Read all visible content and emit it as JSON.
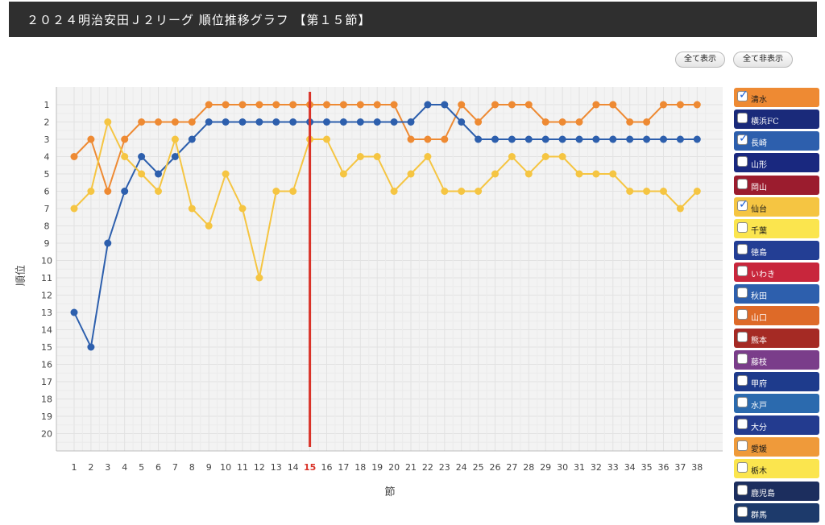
{
  "header": {
    "title": "２０２４明治安田Ｊ２リーグ 順位推移グラフ 【第１５節】"
  },
  "buttons": {
    "show_all": "全て表示",
    "hide_all": "全て非表示"
  },
  "legend": [
    {
      "name": "清水",
      "checked": true,
      "bg": "#ee8a33",
      "text": "#1a1a1a"
    },
    {
      "name": "横浜FC",
      "checked": false,
      "bg": "#1a2a7a",
      "text": "#ffffff"
    },
    {
      "name": "長崎",
      "checked": true,
      "bg": "#2d5fad",
      "text": "#ffffff"
    },
    {
      "name": "山形",
      "checked": false,
      "bg": "#19287f",
      "text": "#ffffff"
    },
    {
      "name": "岡山",
      "checked": false,
      "bg": "#9b1c2e",
      "text": "#ffffff"
    },
    {
      "name": "仙台",
      "checked": true,
      "bg": "#f5c542",
      "text": "#1a1a1a"
    },
    {
      "name": "千葉",
      "checked": false,
      "bg": "#fbe54e",
      "text": "#1a1a1a"
    },
    {
      "name": "徳島",
      "checked": false,
      "bg": "#233e94",
      "text": "#ffffff"
    },
    {
      "name": "いわき",
      "checked": false,
      "bg": "#c8263c",
      "text": "#ffffff"
    },
    {
      "name": "秋田",
      "checked": false,
      "bg": "#2d5fad",
      "text": "#ffffff"
    },
    {
      "name": "山口",
      "checked": false,
      "bg": "#de6a28",
      "text": "#ffffff"
    },
    {
      "name": "熊本",
      "checked": false,
      "bg": "#a52a24",
      "text": "#ffffff"
    },
    {
      "name": "藤枝",
      "checked": false,
      "bg": "#7a3d8a",
      "text": "#ffffff"
    },
    {
      "name": "甲府",
      "checked": false,
      "bg": "#1e3b8c",
      "text": "#ffffff"
    },
    {
      "name": "水戸",
      "checked": false,
      "bg": "#2b6aae",
      "text": "#ffffff"
    },
    {
      "name": "大分",
      "checked": false,
      "bg": "#233b8f",
      "text": "#ffffff"
    },
    {
      "name": "愛媛",
      "checked": false,
      "bg": "#ef9a3a",
      "text": "#1a1a1a"
    },
    {
      "name": "栃木",
      "checked": false,
      "bg": "#fbe54e",
      "text": "#1a1a1a"
    },
    {
      "name": "鹿児島",
      "checked": false,
      "bg": "#1c2e5e",
      "text": "#ffffff"
    },
    {
      "name": "群馬",
      "checked": false,
      "bg": "#1d3a6b",
      "text": "#ffffff"
    }
  ],
  "chart_data": {
    "type": "line",
    "xlabel": "節",
    "ylabel": "順位",
    "x": [
      1,
      2,
      3,
      4,
      5,
      6,
      7,
      8,
      9,
      10,
      11,
      12,
      13,
      14,
      15,
      16,
      17,
      18,
      19,
      20,
      21,
      22,
      23,
      24,
      25,
      26,
      27,
      28,
      29,
      30,
      31,
      32,
      33,
      34,
      35,
      36,
      37,
      38
    ],
    "ylim": [
      1,
      20
    ],
    "y_inverted": true,
    "current_round": 15,
    "current_round_color": "#d93228",
    "grid": true,
    "series": [
      {
        "name": "清水",
        "color": "#ee8a33",
        "values": [
          4,
          3,
          6,
          3,
          2,
          2,
          2,
          2,
          1,
          1,
          1,
          1,
          1,
          1,
          1,
          1,
          1,
          1,
          1,
          1,
          3,
          3,
          3,
          1,
          2,
          1,
          1,
          1,
          2,
          2,
          2,
          1,
          1,
          2,
          2,
          1,
          1,
          1
        ]
      },
      {
        "name": "長崎",
        "color": "#2d5fad",
        "values": [
          13,
          15,
          9,
          6,
          4,
          5,
          4,
          3,
          2,
          2,
          2,
          2,
          2,
          2,
          2,
          2,
          2,
          2,
          2,
          2,
          2,
          1,
          1,
          2,
          3,
          3,
          3,
          3,
          3,
          3,
          3,
          3,
          3,
          3,
          3,
          3,
          3,
          3
        ]
      },
      {
        "name": "仙台",
        "color": "#f5c542",
        "values": [
          7,
          6,
          2,
          4,
          5,
          6,
          3,
          7,
          8,
          5,
          7,
          11,
          6,
          6,
          3,
          3,
          5,
          4,
          4,
          6,
          5,
          4,
          6,
          6,
          6,
          5,
          4,
          5,
          4,
          4,
          5,
          5,
          5,
          6,
          6,
          6,
          7,
          6
        ]
      }
    ]
  }
}
